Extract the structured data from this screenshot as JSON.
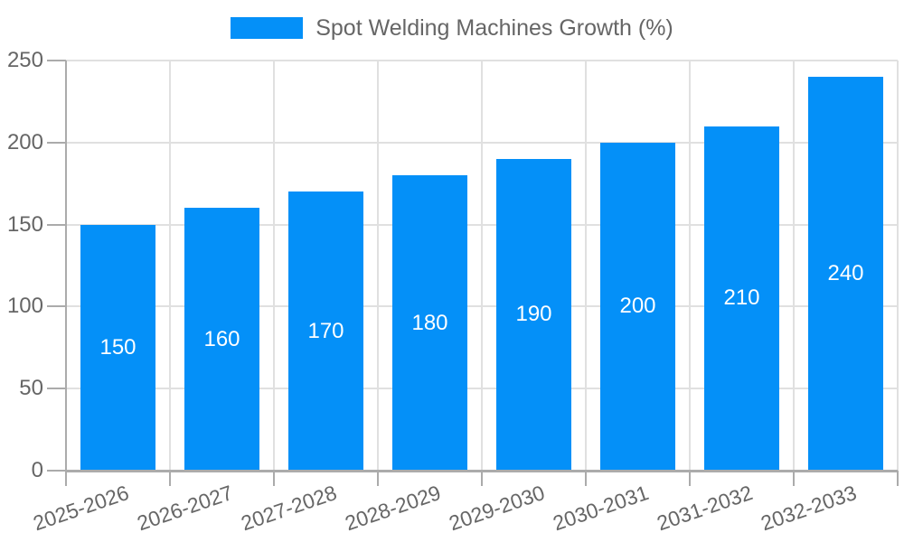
{
  "chart_data": {
    "type": "bar",
    "title": "",
    "legend_label": "Spot Welding Machines Growth (%)",
    "categories": [
      "2025-2026",
      "2026-2027",
      "2027-2028",
      "2028-2029",
      "2029-2030",
      "2030-2031",
      "2031-2032",
      "2032-2033"
    ],
    "values": [
      150,
      160,
      170,
      180,
      190,
      200,
      210,
      240
    ],
    "xlabel": "",
    "ylabel": "",
    "ylim": [
      0,
      250
    ],
    "yticks": [
      0,
      50,
      100,
      150,
      200,
      250
    ],
    "grid": true,
    "legend_position": "top-center",
    "bar_value_labels": "inside-center",
    "x_tick_rotation_deg": -19
  },
  "colors": {
    "bar": "#0490F8",
    "grid": "#E0E0E0",
    "axis": "#ABABAB",
    "tick_label": "#666666",
    "legend_label": "#666666",
    "bar_value_label": "#FFFFFF",
    "background": "#FFFFFF"
  }
}
